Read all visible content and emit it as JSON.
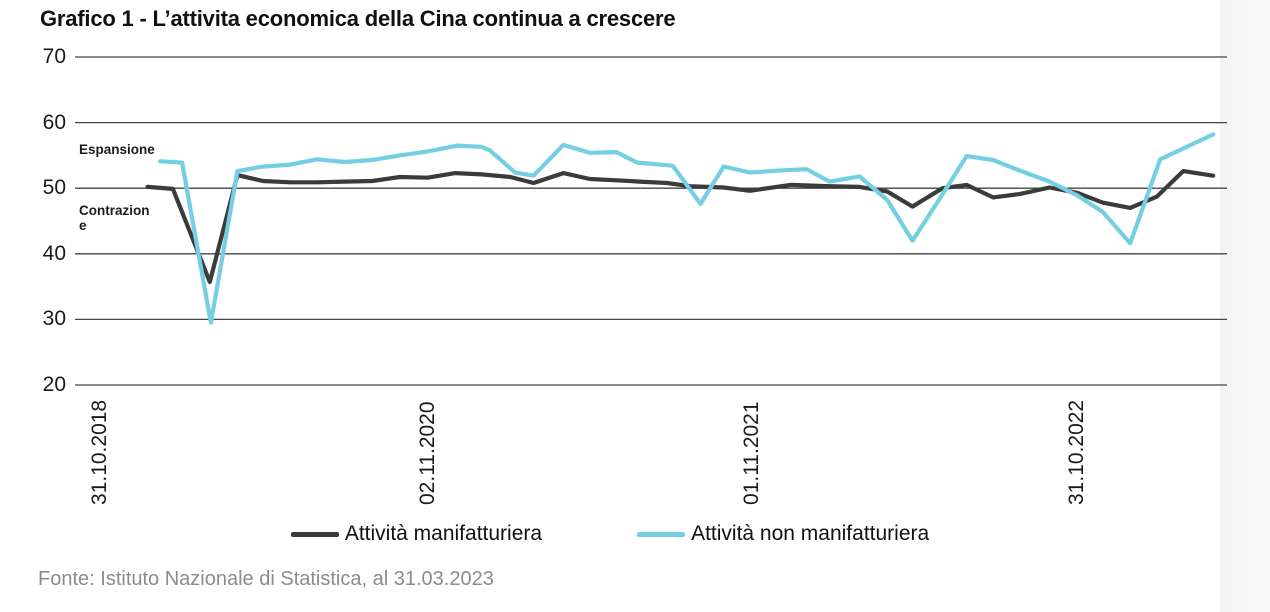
{
  "title": "Grafico 1 - L’attivita economica della Cina continua a crescere",
  "source": "Fonte: Istituto Nazionale di Statistica, al 31.03.2023",
  "annotations": {
    "expansion": "Espansione",
    "contraction_line1": "Contrazion",
    "contraction_line2": "e"
  },
  "legend": [
    {
      "label": "Attività manifatturiera",
      "color": "#3b3b3b"
    },
    {
      "label": "Attività non manifatturiera",
      "color": "#74cfe2"
    }
  ],
  "colors": {
    "manufacturing": "#3b3b3b",
    "non_manufacturing": "#74cfe2",
    "gridline": "#454545",
    "source_text": "#8c8c8c"
  },
  "chart_data": {
    "type": "line",
    "title": "Grafico 1 - L’attivita economica della Cina continua a crescere",
    "ylim": [
      20,
      70
    ],
    "yticks": [
      20,
      30,
      40,
      50,
      60,
      70
    ],
    "grid": "horizontal",
    "legend_position": "bottom",
    "xticks": [
      {
        "label": "31.10.2018",
        "pos": 0.022
      },
      {
        "label": "02.11.2020",
        "pos": 0.306
      },
      {
        "label": "01.11.2021",
        "pos": 0.588
      },
      {
        "label": "31.10.2022",
        "pos": 0.87
      }
    ],
    "x_unit": "fraction of x-axis (dates, irregular spacing)",
    "series": [
      {
        "name": "Attività manifatturiera",
        "color": "#3b3b3b",
        "points": [
          [
            0.063,
            50.2
          ],
          [
            0.085,
            49.9
          ],
          [
            0.117,
            35.7
          ],
          [
            0.141,
            52.0
          ],
          [
            0.163,
            51.1
          ],
          [
            0.187,
            50.9
          ],
          [
            0.21,
            50.9
          ],
          [
            0.234,
            51.0
          ],
          [
            0.258,
            51.1
          ],
          [
            0.282,
            51.7
          ],
          [
            0.306,
            51.6
          ],
          [
            0.33,
            52.3
          ],
          [
            0.353,
            52.1
          ],
          [
            0.378,
            51.7
          ],
          [
            0.398,
            50.8
          ],
          [
            0.424,
            52.3
          ],
          [
            0.447,
            51.4
          ],
          [
            0.47,
            51.2
          ],
          [
            0.49,
            51.0
          ],
          [
            0.514,
            50.8
          ],
          [
            0.534,
            50.3
          ],
          [
            0.563,
            50.1
          ],
          [
            0.586,
            49.6
          ],
          [
            0.621,
            50.5
          ],
          [
            0.655,
            50.3
          ],
          [
            0.681,
            50.2
          ],
          [
            0.705,
            49.5
          ],
          [
            0.727,
            47.2
          ],
          [
            0.753,
            50.0
          ],
          [
            0.774,
            50.5
          ],
          [
            0.797,
            48.6
          ],
          [
            0.82,
            49.1
          ],
          [
            0.846,
            50.1
          ],
          [
            0.87,
            49.3
          ],
          [
            0.892,
            47.8
          ],
          [
            0.916,
            47.0
          ],
          [
            0.939,
            48.7
          ],
          [
            0.962,
            52.6
          ],
          [
            0.988,
            51.9
          ]
        ]
      },
      {
        "name": "Attività non manifatturiera",
        "color": "#74cfe2",
        "points": [
          [
            0.074,
            54.1
          ],
          [
            0.093,
            53.9
          ],
          [
            0.118,
            29.5
          ],
          [
            0.141,
            52.6
          ],
          [
            0.163,
            53.3
          ],
          [
            0.187,
            53.6
          ],
          [
            0.21,
            54.4
          ],
          [
            0.234,
            54.0
          ],
          [
            0.258,
            54.3
          ],
          [
            0.282,
            55.0
          ],
          [
            0.306,
            55.6
          ],
          [
            0.332,
            56.5
          ],
          [
            0.353,
            56.3
          ],
          [
            0.36,
            55.8
          ],
          [
            0.382,
            52.4
          ],
          [
            0.398,
            51.9
          ],
          [
            0.424,
            56.6
          ],
          [
            0.447,
            55.4
          ],
          [
            0.47,
            55.5
          ],
          [
            0.488,
            53.9
          ],
          [
            0.514,
            53.5
          ],
          [
            0.519,
            53.4
          ],
          [
            0.543,
            47.6
          ],
          [
            0.563,
            53.3
          ],
          [
            0.586,
            52.4
          ],
          [
            0.612,
            52.7
          ],
          [
            0.635,
            52.9
          ],
          [
            0.655,
            51.0
          ],
          [
            0.681,
            51.8
          ],
          [
            0.705,
            48.2
          ],
          [
            0.727,
            42.0
          ],
          [
            0.751,
            48.5
          ],
          [
            0.774,
            54.9
          ],
          [
            0.797,
            54.3
          ],
          [
            0.82,
            52.7
          ],
          [
            0.846,
            51.0
          ],
          [
            0.87,
            48.9
          ],
          [
            0.892,
            46.4
          ],
          [
            0.916,
            41.6
          ],
          [
            0.942,
            54.4
          ],
          [
            0.965,
            56.3
          ],
          [
            0.988,
            58.2
          ]
        ]
      }
    ]
  }
}
